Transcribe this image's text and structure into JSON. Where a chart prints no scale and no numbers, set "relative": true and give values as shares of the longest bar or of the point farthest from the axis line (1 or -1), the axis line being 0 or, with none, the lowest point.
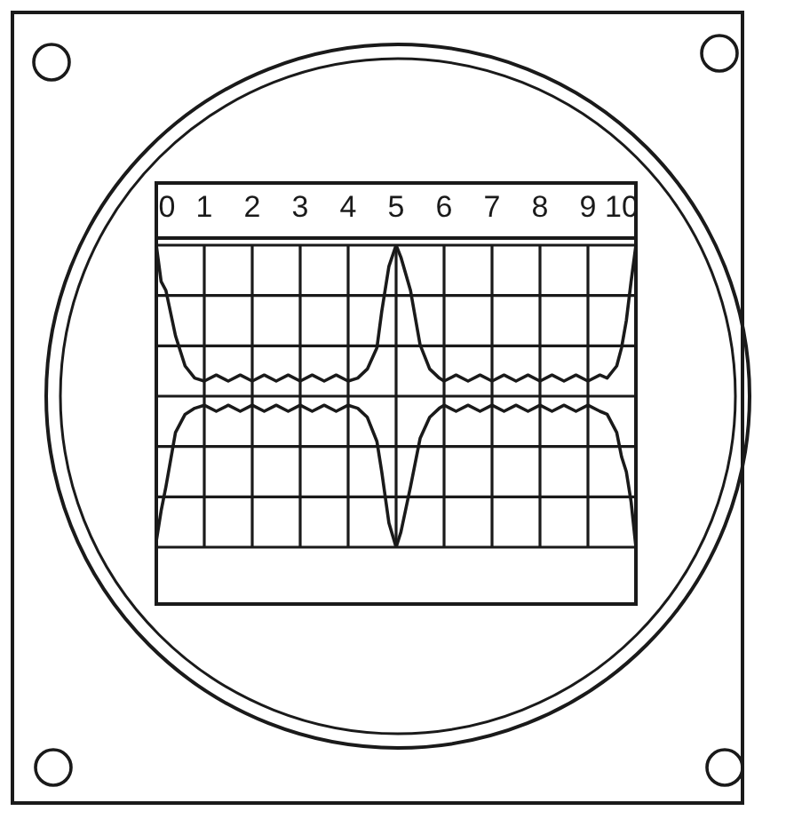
{
  "chart_data": {
    "type": "line",
    "relative": true,
    "grid": true,
    "x": [
      0,
      0.1,
      0.2,
      0.4,
      0.6,
      0.8,
      1,
      1.25,
      1.5,
      1.75,
      2,
      2.25,
      2.5,
      2.75,
      3,
      3.25,
      3.5,
      3.75,
      4,
      4.2,
      4.4,
      4.6,
      4.7,
      4.85,
      5,
      5.1,
      5.3,
      5.5,
      5.7,
      5.9,
      6,
      6.25,
      6.5,
      6.75,
      7,
      7.25,
      7.5,
      7.75,
      8,
      8.25,
      8.5,
      8.75,
      9,
      9.25,
      9.4,
      9.6,
      9.7,
      9.8,
      9.9,
      10
    ],
    "xlim": [
      0,
      10
    ],
    "xticks": [
      0,
      1,
      2,
      3,
      4,
      5,
      6,
      7,
      8,
      9,
      10
    ],
    "series": [
      {
        "color": "#1a1a1a",
        "values": [
          1.0,
          0.88,
          0.85,
          0.7,
          0.6,
          0.56,
          0.55,
          0.57,
          0.55,
          0.57,
          0.55,
          0.57,
          0.55,
          0.57,
          0.55,
          0.57,
          0.55,
          0.57,
          0.55,
          0.56,
          0.59,
          0.66,
          0.78,
          0.93,
          1.0,
          0.96,
          0.85,
          0.67,
          0.59,
          0.56,
          0.55,
          0.57,
          0.55,
          0.57,
          0.55,
          0.57,
          0.55,
          0.57,
          0.55,
          0.57,
          0.55,
          0.57,
          0.55,
          0.57,
          0.56,
          0.6,
          0.66,
          0.75,
          0.88,
          1.0
        ]
      },
      {
        "color": "#1a1a1a",
        "values": [
          0.02,
          0.12,
          0.2,
          0.38,
          0.44,
          0.46,
          0.47,
          0.45,
          0.47,
          0.45,
          0.47,
          0.45,
          0.47,
          0.45,
          0.47,
          0.45,
          0.47,
          0.45,
          0.47,
          0.46,
          0.43,
          0.35,
          0.25,
          0.08,
          0.0,
          0.05,
          0.2,
          0.36,
          0.43,
          0.46,
          0.47,
          0.45,
          0.47,
          0.45,
          0.47,
          0.45,
          0.47,
          0.45,
          0.47,
          0.45,
          0.47,
          0.45,
          0.47,
          0.45,
          0.44,
          0.38,
          0.3,
          0.25,
          0.15,
          0.0
        ]
      }
    ]
  }
}
